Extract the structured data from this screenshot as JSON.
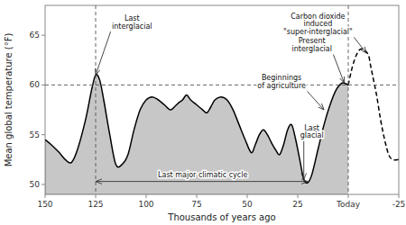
{
  "chart_data": {
    "type": "line",
    "xlabel": "Thousands of years ago",
    "ylabel": "Mean global temperature (°F)",
    "xlim": [
      150,
      -25
    ],
    "ylim": [
      49,
      68
    ],
    "xticks": [
      150,
      125,
      100,
      75,
      50,
      25,
      {
        "value": 0,
        "label": "Today"
      },
      -25
    ],
    "yticks": [
      50,
      55,
      60,
      65
    ],
    "grid": false,
    "hlines": [
      60
    ],
    "vlines": [
      125,
      0
    ],
    "series": [
      {
        "type": "area",
        "color": "#000000",
        "line_style": "solid",
        "x": [
          150,
          147,
          143,
          140,
          137,
          134,
          130,
          127,
          125,
          123,
          121,
          118,
          115,
          112,
          109,
          106,
          103,
          100,
          97,
          94,
          91,
          88,
          86,
          84,
          82,
          80,
          78,
          75,
          72,
          70,
          68,
          66,
          63,
          60,
          57,
          54,
          51,
          48,
          46,
          44,
          42,
          40,
          38,
          36,
          34,
          32,
          30,
          28,
          26,
          24,
          22,
          20,
          18,
          15,
          12,
          9,
          6,
          3,
          0
        ],
        "values": [
          54.5,
          54.0,
          53.2,
          52.5,
          52.2,
          53.5,
          56.5,
          59.5,
          61.0,
          60.5,
          58.5,
          55.0,
          52.0,
          52.0,
          53.0,
          55.5,
          57.5,
          58.5,
          58.8,
          58.5,
          58.0,
          57.5,
          57.8,
          58.2,
          58.5,
          59.0,
          58.5,
          58.0,
          57.5,
          57.2,
          57.8,
          58.5,
          58.8,
          58.5,
          57.5,
          56.0,
          54.5,
          53.2,
          54.0,
          55.0,
          55.5,
          55.0,
          54.2,
          53.5,
          53.0,
          54.0,
          55.5,
          56.0,
          54.5,
          52.5,
          50.5,
          50.2,
          51.0,
          53.5,
          56.0,
          58.0,
          59.5,
          60.2,
          60.0
        ]
      },
      {
        "type": "line",
        "color": "#000000",
        "line_style": "dashed",
        "x": [
          0,
          -2,
          -4,
          -6,
          -8,
          -10,
          -11,
          -12,
          -14,
          -16,
          -18,
          -20,
          -22,
          -25
        ],
        "values": [
          60.0,
          61.8,
          63.0,
          63.6,
          63.5,
          63.0,
          62.0,
          61.0,
          59.0,
          56.5,
          54.5,
          53.0,
          52.5,
          52.5
        ]
      }
    ],
    "annotations": [
      {
        "text": "Last\ninterglacial",
        "x": 125,
        "y": 61.0,
        "text_x": 107,
        "text_y": 65.5
      },
      {
        "text": "Carbon dioxide\ninduced\n\"super-interglacial\"",
        "x": -9,
        "y": 63.2,
        "text_x": 15,
        "text_y": 67.4
      },
      {
        "text": "Present\ninterglacial",
        "x": 2,
        "y": 60.2,
        "text_x": 18,
        "text_y": 63.2
      },
      {
        "text": "Beginnings\nof agriculture",
        "x": 12,
        "y": 57.5,
        "text_x": 33,
        "text_y": 59.5
      },
      {
        "text": "Last\nglacial",
        "x": 22,
        "y": 50.5,
        "text_x": 18,
        "text_y": 54.5
      },
      {
        "text": "Last major climatic cycle",
        "text_x": 72,
        "text_y": 50.5,
        "span": {
          "x1": 125,
          "x2": 20,
          "y": 50.3
        }
      }
    ]
  }
}
